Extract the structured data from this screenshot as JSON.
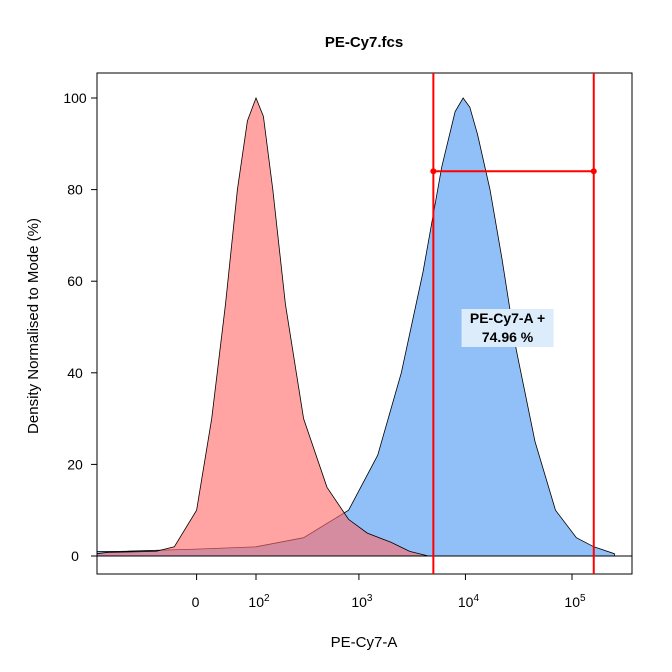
{
  "chart_data": {
    "type": "area",
    "title": "PE-Cy7.fcs",
    "xlabel": "PE-Cy7-A",
    "ylabel": "Density Normalised to Mode (%)",
    "x_scale": "biexponential",
    "ylim": [
      0,
      100
    ],
    "y_ticks": [
      0,
      20,
      40,
      60,
      80,
      100
    ],
    "x_ticks": [
      {
        "label": "0",
        "value": 0
      },
      {
        "label": "10",
        "exp": "2",
        "value": 100
      },
      {
        "label": "10",
        "exp": "3",
        "value": 1000
      },
      {
        "label": "10",
        "exp": "4",
        "value": 10000
      },
      {
        "label": "10",
        "exp": "5",
        "value": 100000
      }
    ],
    "grid": false,
    "legend": "none",
    "series": [
      {
        "color": "#FF6B6B",
        "x": [
          -400,
          -200,
          -60,
          -30,
          0,
          20,
          40,
          60,
          80,
          100,
          120,
          150,
          200,
          300,
          500,
          800,
          1200,
          2000,
          3000,
          4500
        ],
        "y": [
          0.5,
          0.8,
          1.0,
          2,
          10,
          30,
          55,
          80,
          95,
          100,
          96,
          80,
          55,
          30,
          15,
          8,
          5,
          3,
          1,
          0
        ]
      },
      {
        "color": "#7EB5F7",
        "x": [
          -650,
          -600,
          -550,
          -500,
          -400,
          -300,
          -150,
          0,
          100,
          300,
          800,
          1500,
          2500,
          4000,
          6000,
          8000,
          9500,
          11000,
          13000,
          17000,
          22000,
          30000,
          45000,
          70000,
          110000,
          160000,
          250000
        ],
        "y": [
          1,
          1,
          1.2,
          1.5,
          1.2,
          1,
          1,
          1.5,
          2,
          4,
          10,
          22,
          40,
          62,
          85,
          97,
          100,
          98,
          92,
          80,
          65,
          45,
          25,
          10,
          4,
          2,
          0.5
        ]
      }
    ],
    "gate": {
      "name": "PE-Cy7-A +",
      "percent": "74.96 %",
      "x_min": 5000,
      "x_max": 160000,
      "bar_y": 84,
      "color": "#FF0000"
    }
  }
}
